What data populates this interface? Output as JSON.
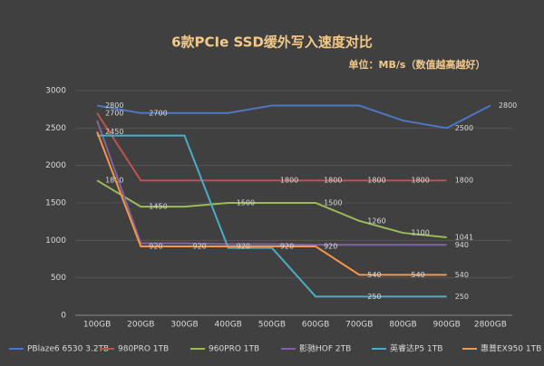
{
  "chart_data": {
    "type": "line",
    "title": "6款PCIe SSD缓外写入速度对比",
    "subtitle": "单位：MB/s（数值越高越好）",
    "categories": [
      "100GB",
      "200GB",
      "300GB",
      "400GB",
      "500GB",
      "600GB",
      "700GB",
      "800GB",
      "900GB",
      "2800GB"
    ],
    "ylim": [
      0,
      3000
    ],
    "yticks": [
      0,
      500,
      1000,
      1500,
      2000,
      2500,
      3000
    ],
    "grid": true,
    "legend": "bottom",
    "series": [
      {
        "name": "PBlaze6 6530 3.2TB",
        "color": "#4f76c4",
        "values": [
          2800,
          2700,
          2700,
          2700,
          2800,
          2800,
          2800,
          2600,
          2500,
          2800
        ],
        "value_labels": [
          "2800",
          "2700",
          null,
          null,
          null,
          null,
          null,
          null,
          "2500",
          "2800"
        ]
      },
      {
        "name": "980PRO 1TB",
        "color": "#c0504d",
        "values": [
          2700,
          1800,
          1800,
          1800,
          1800,
          1800,
          1800,
          1800,
          1800,
          null
        ],
        "value_labels": [
          "2700",
          null,
          null,
          null,
          "1800",
          "1800",
          "1800",
          "1800",
          "1800",
          null
        ]
      },
      {
        "name": "960PRO 1TB",
        "color": "#9bbb59",
        "values": [
          1800,
          1450,
          1450,
          1500,
          1500,
          1500,
          1260,
          1100,
          1041,
          null
        ],
        "value_labels": [
          "1800",
          "1450",
          null,
          "1500",
          null,
          "1500",
          "1260",
          "1100",
          "1041",
          null
        ]
      },
      {
        "name": "影驰HOF 2TB",
        "color": "#8064a2",
        "values": [
          2600,
          960,
          960,
          950,
          950,
          940,
          940,
          940,
          940,
          null
        ],
        "value_labels": [
          null,
          null,
          null,
          null,
          null,
          null,
          null,
          null,
          "940",
          null
        ]
      },
      {
        "name": "英睿达P5 1TB",
        "color": "#4bacc6",
        "values": [
          2400,
          2400,
          2400,
          900,
          900,
          250,
          250,
          250,
          250,
          null
        ],
        "value_labels": [
          null,
          null,
          null,
          null,
          null,
          null,
          "250",
          null,
          "250",
          null
        ]
      },
      {
        "name": "惠普EX950 1TB",
        "color": "#f79646",
        "values": [
          2450,
          920,
          920,
          920,
          920,
          920,
          540,
          540,
          540,
          null
        ],
        "value_labels": [
          "2450",
          "920",
          "920",
          "920",
          "920",
          "920",
          "540",
          "540",
          "540",
          null
        ]
      }
    ]
  }
}
